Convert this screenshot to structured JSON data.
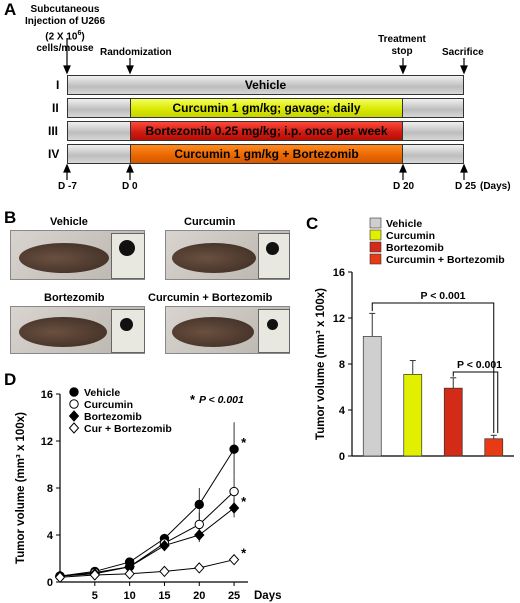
{
  "panel_a": {
    "letter": "A",
    "injection_label_1": "Subcutaneous",
    "injection_label_2": "Injection of U266",
    "injection_label_3": "(2 X 10",
    "injection_label_sup": "6",
    "injection_label_4": ") cells/mouse",
    "randomization": "Randomization",
    "treatment_stop_1": "Treatment",
    "treatment_stop_2": "stop",
    "sacrifice": "Sacrifice",
    "groups": [
      {
        "numeral": "I",
        "label": "Vehicle",
        "color": "#cccccc"
      },
      {
        "numeral": "II",
        "label": "Curcumin 1 gm/kg; gavage; daily",
        "color": "#dde600"
      },
      {
        "numeral": "III",
        "label": "Bortezomib 0.25 mg/kg; i.p. once per week",
        "color": "#cc1a10"
      },
      {
        "numeral": "IV",
        "label": "Curcumin 1 gm/kg + Bortezomib",
        "color": "#e86600"
      }
    ],
    "days": [
      "D -7",
      "D 0",
      "D 20",
      "D 25"
    ],
    "days_unit": "(Days)"
  },
  "panel_b": {
    "letter": "B",
    "labels": [
      "Vehicle",
      "Curcumin",
      "Bortezomib",
      "Curcumin + Bortezomib"
    ]
  },
  "panel_c": {
    "letter": "C",
    "legend": [
      "Vehicle",
      "Curcumin",
      "Bortezomib",
      "Curcumin + Bortezomib"
    ],
    "colors": [
      "#cfcfcf",
      "#e2f000",
      "#d42a18",
      "#e83a14"
    ],
    "p1": "P < 0.001",
    "p2": "P < 0.001"
  },
  "panel_d": {
    "letter": "D",
    "legend": [
      "Vehicle",
      "Curcumin",
      "Bortezomib",
      "Cur + Bortezomib"
    ],
    "p_note": "P < 0.001",
    "xlabel_unit": "Days"
  },
  "chart_data": [
    {
      "type": "bar",
      "title": "",
      "xlabel": "",
      "ylabel": "Tumor volume (mm³ x 100x)",
      "ylim": [
        0,
        16
      ],
      "yticks": [
        0,
        4,
        8,
        12,
        16
      ],
      "categories": [
        "Vehicle",
        "Curcumin",
        "Bortezomib",
        "Curcumin + Bortezomib"
      ],
      "values": [
        10.4,
        7.1,
        5.9,
        1.5
      ],
      "errors": [
        2.0,
        1.2,
        0.9,
        0.3
      ],
      "grid": false,
      "legend_position": "top"
    },
    {
      "type": "line",
      "title": "",
      "xlabel": "Days",
      "ylabel": "Tumor volume (mm³ x 100x)",
      "ylim": [
        0,
        16
      ],
      "yticks": [
        0,
        4,
        8,
        12,
        16
      ],
      "x": [
        0,
        5,
        10,
        15,
        20,
        25
      ],
      "xticks": [
        5,
        10,
        15,
        20,
        25
      ],
      "series": [
        {
          "name": "Vehicle",
          "marker": "filled-circle",
          "values": [
            0.5,
            0.9,
            1.7,
            3.7,
            6.6,
            11.3
          ],
          "errors": [
            0.1,
            0.2,
            0.3,
            0.4,
            1.4,
            2.3
          ]
        },
        {
          "name": "Curcumin",
          "marker": "open-circle",
          "values": [
            0.5,
            0.8,
            1.3,
            3.3,
            4.9,
            7.7
          ],
          "errors": [
            0.1,
            0.2,
            0.3,
            0.4,
            1.0,
            1.3
          ]
        },
        {
          "name": "Bortezomib",
          "marker": "filled-diamond",
          "values": [
            0.5,
            0.7,
            1.3,
            3.1,
            4.0,
            6.3
          ],
          "errors": [
            0.1,
            0.1,
            0.2,
            0.4,
            0.6,
            0.8
          ]
        },
        {
          "name": "Cur + Bortezomib",
          "marker": "open-diamond",
          "values": [
            0.4,
            0.6,
            0.7,
            0.9,
            1.2,
            1.9
          ],
          "errors": [
            0.05,
            0.1,
            0.1,
            0.1,
            0.1,
            0.2
          ]
        }
      ],
      "asterisk_series": [
        "Vehicle",
        "Bortezomib",
        "Cur + Bortezomib"
      ],
      "grid": false,
      "legend_position": "top-left"
    }
  ]
}
